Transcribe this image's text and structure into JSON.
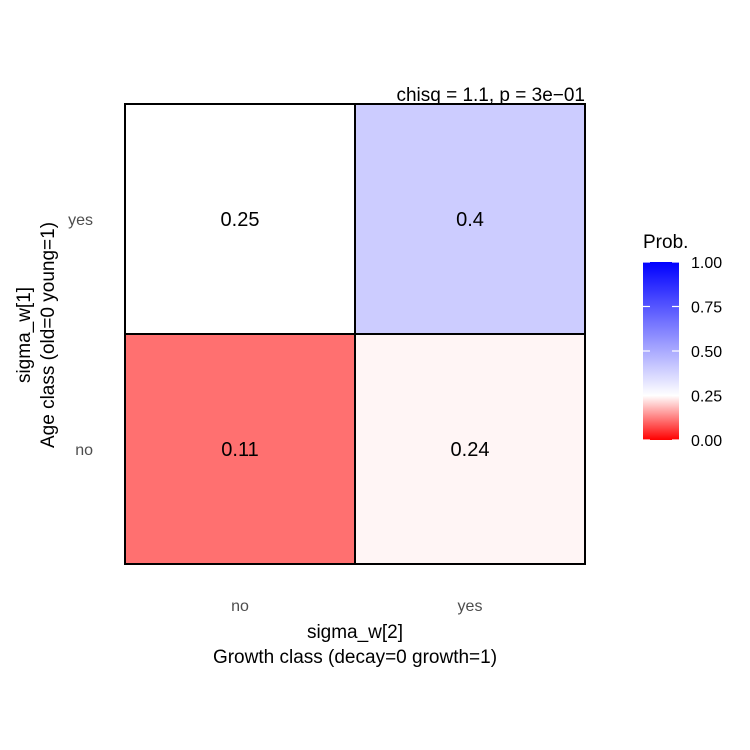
{
  "chart_data": {
    "type": "heatmap",
    "annotation": "chisq = 1.1, p = 3e−01",
    "x_categories": [
      "no",
      "yes"
    ],
    "y_categories": [
      "no",
      "yes"
    ],
    "xlabel_line1": "sigma_w[2]",
    "xlabel_line2": "Growth class (decay=0 growth=1)",
    "ylabel_line1": "sigma_w[1]",
    "ylabel_line2": "Age class (old=0 young=1)",
    "cells": [
      {
        "x": "no",
        "y": "yes",
        "value": 0.25,
        "label": "0.25"
      },
      {
        "x": "yes",
        "y": "yes",
        "value": 0.4,
        "label": "0.4"
      },
      {
        "x": "no",
        "y": "no",
        "value": 0.11,
        "label": "0.11"
      },
      {
        "x": "yes",
        "y": "no",
        "value": 0.24,
        "label": "0.24"
      }
    ],
    "legend": {
      "title": "Prob.",
      "ticks": [
        "0.00",
        "0.25",
        "0.50",
        "0.75",
        "1.00"
      ],
      "tick_values": [
        0,
        0.25,
        0.5,
        0.75,
        1.0
      ],
      "range": [
        0,
        1
      ],
      "midpoint": 0.25,
      "low_color": "#ff0000",
      "mid_color": "#ffffff",
      "high_color": "#0000ff"
    }
  }
}
